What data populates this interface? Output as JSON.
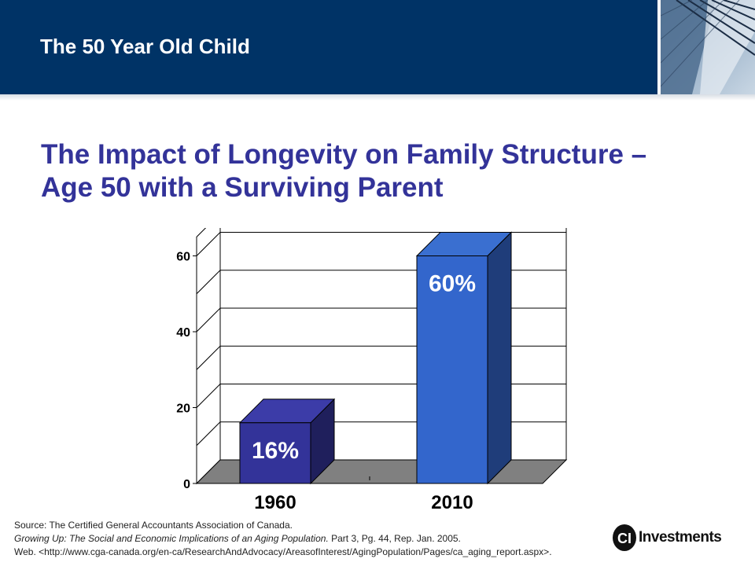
{
  "header": {
    "title": "The 50 Year Old Child"
  },
  "slide_title": {
    "line1": "The Impact of Longevity on Family Structure –",
    "line2": "Age 50 with a Surviving Parent"
  },
  "chart_data": {
    "type": "bar",
    "categories": [
      "1960",
      "2010"
    ],
    "values": [
      16,
      60
    ],
    "data_labels": [
      "16%",
      "60%"
    ],
    "ylim": [
      0,
      65
    ],
    "yticks": [
      0,
      20,
      40,
      60
    ],
    "grid": true,
    "three_d": true,
    "colors": [
      "#333399",
      "#3366cc"
    ]
  },
  "source": {
    "line1": "Source: The  Certified General  Accountants Association of Canada.",
    "line2_italic": "Growing Up: The Social and Economic Implications of an Aging Population.",
    "line2_rest": " Part 3, Pg. 44, Rep. Jan. 2005.",
    "line3": "Web. <http://www.cga-canada.org/en-ca/ResearchAndAdvocacy/AreasofInterest/AgingPopulation/Pages/ca_aging_report.aspx>."
  },
  "logo": {
    "mark": "CI",
    "text": "Investments"
  },
  "colors": {
    "header_bg": "#003366",
    "title_color": "#333399"
  }
}
